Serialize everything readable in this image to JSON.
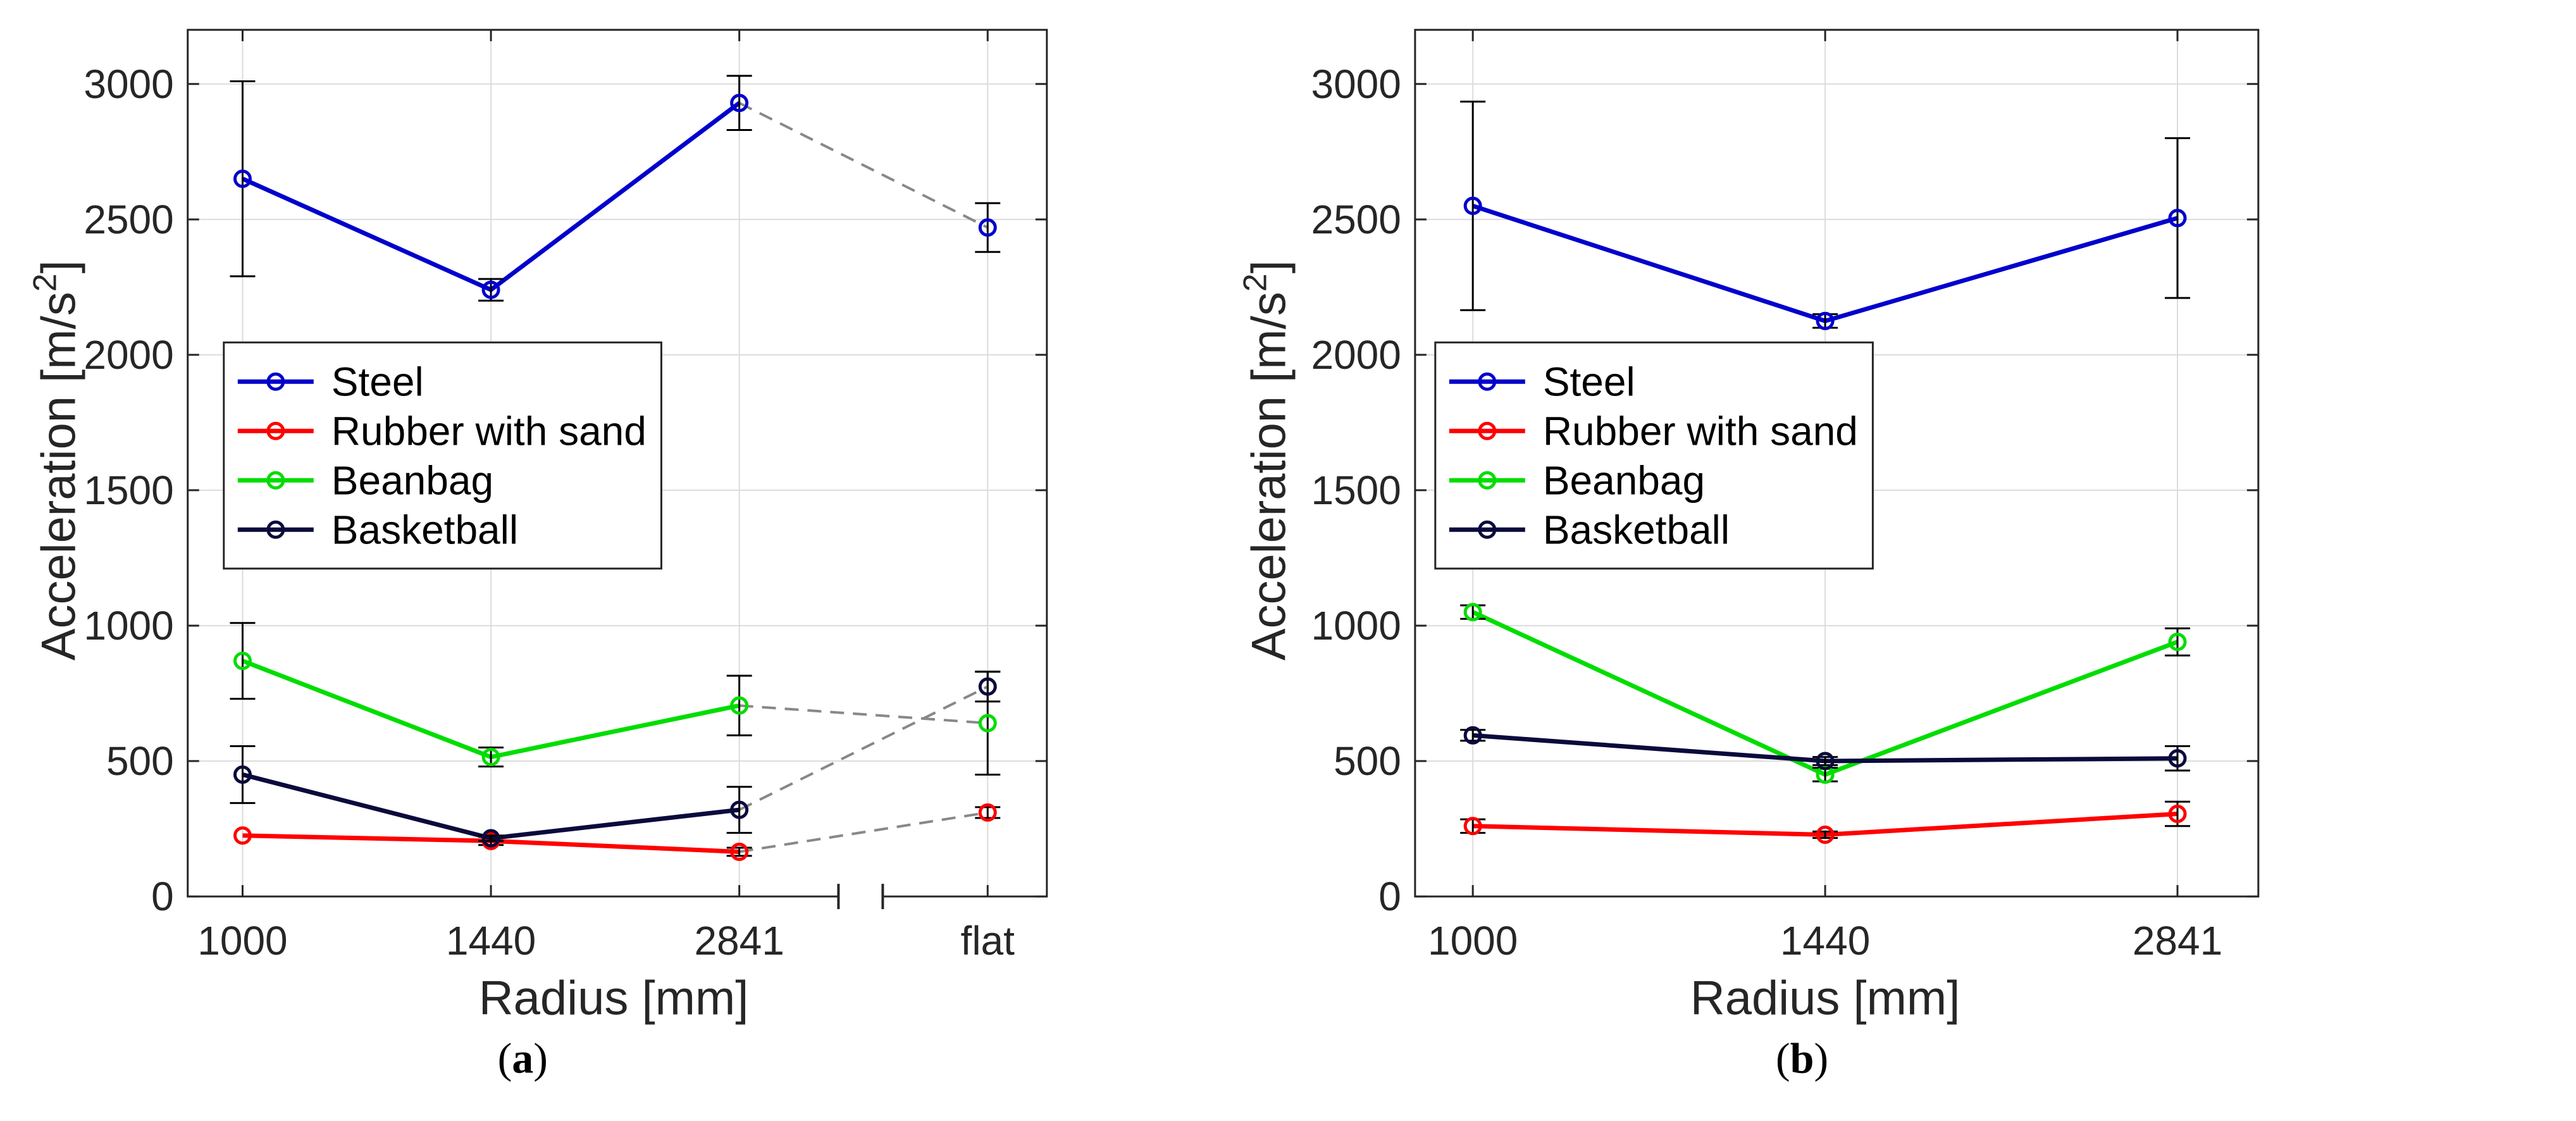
{
  "colors": {
    "Steel": "#0000cc",
    "Rubber with sand": "#ff0000",
    "Beanbag": "#00dd00",
    "Basketball": "#0a0a3c",
    "connector": "#888888",
    "errorbar": "#000000",
    "grid": "#dcdcdc"
  },
  "chart_data": [
    {
      "type": "line",
      "panel_label": "a",
      "categories": [
        "1000",
        "1440",
        "2841",
        "flat"
      ],
      "xlabel": "Radius [mm]",
      "ylabel": "Acceleration [m/s",
      "ylabel_sup": "2",
      "ylabel_close": "]",
      "ylim": [
        0,
        3200
      ],
      "yticks": [
        "0",
        "500",
        "1000",
        "1500",
        "2000",
        "2500",
        "3000"
      ],
      "legend_position": "middle-left",
      "axis_break_after": "2841",
      "solid_line_categories": [
        "1000",
        "1440",
        "2841"
      ],
      "dashed_connector_to": "flat",
      "series": [
        {
          "name": "Steel",
          "values": [
            2650,
            2240,
            2930,
            2470
          ],
          "errors": [
            360,
            40,
            100,
            90
          ]
        },
        {
          "name": "Rubber with sand",
          "values": [
            225,
            205,
            165,
            310
          ],
          "errors": [
            0,
            15,
            15,
            20
          ]
        },
        {
          "name": "Beanbag",
          "values": [
            870,
            515,
            705,
            640
          ],
          "errors": [
            140,
            35,
            110,
            190
          ]
        },
        {
          "name": "Basketball",
          "values": [
            450,
            215,
            320,
            775
          ],
          "errors": [
            105,
            10,
            85,
            55
          ]
        }
      ]
    },
    {
      "type": "line",
      "panel_label": "b",
      "categories": [
        "1000",
        "1440",
        "2841"
      ],
      "xlabel": "Radius [mm]",
      "ylabel": "Acceleration [m/s",
      "ylabel_sup": "2",
      "ylabel_close": "]",
      "ylim": [
        0,
        3200
      ],
      "yticks": [
        "0",
        "500",
        "1000",
        "1500",
        "2000",
        "2500",
        "3000"
      ],
      "legend_position": "middle-left",
      "series": [
        {
          "name": "Steel",
          "values": [
            2550,
            2125,
            2505
          ],
          "errors": [
            385,
            25,
            295
          ]
        },
        {
          "name": "Rubber with sand",
          "values": [
            260,
            228,
            305
          ],
          "errors": [
            25,
            12,
            45
          ]
        },
        {
          "name": "Beanbag",
          "values": [
            1050,
            450,
            940
          ],
          "errors": [
            25,
            25,
            50
          ]
        },
        {
          "name": "Basketball",
          "values": [
            595,
            500,
            510
          ],
          "errors": [
            20,
            15,
            45
          ]
        }
      ]
    }
  ]
}
